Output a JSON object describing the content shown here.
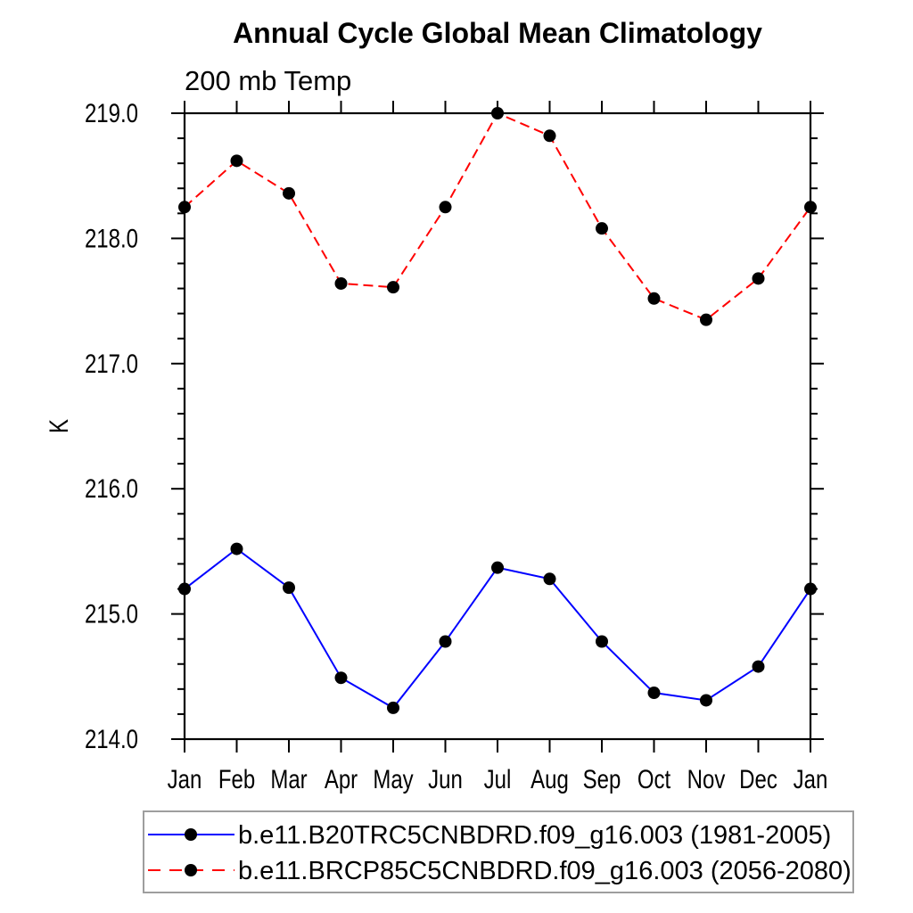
{
  "chart_data": {
    "type": "line",
    "title": "Annual Cycle Global Mean Climatology",
    "subtitle": "200 mb Temp",
    "ylabel": "K",
    "xlabel": "",
    "categories": [
      "Jan",
      "Feb",
      "Mar",
      "Apr",
      "May",
      "Jun",
      "Jul",
      "Aug",
      "Sep",
      "Oct",
      "Nov",
      "Dec",
      "Jan"
    ],
    "ylim": [
      214.0,
      219.0
    ],
    "ytick_interval": 1.0,
    "yminor_interval": 0.2,
    "ytick_labels": [
      "214.0",
      "215.0",
      "216.0",
      "217.0",
      "218.0",
      "219.0"
    ],
    "grid": false,
    "legend_position": "bottom",
    "series": [
      {
        "name": "b.e11.B20TRC5CNBDRD.f09_g16.003 (1981-2005)",
        "color": "#0000ff",
        "line_style": "solid",
        "marker": "filled-circle",
        "marker_color": "#000000",
        "values": [
          215.2,
          215.52,
          215.21,
          214.49,
          214.25,
          214.78,
          215.37,
          215.28,
          214.78,
          214.37,
          214.31,
          214.58,
          215.2
        ]
      },
      {
        "name": "b.e11.BRCP85C5CNBDRD.f09_g16.003 (2056-2080)",
        "color": "#ff0000",
        "line_style": "dashed",
        "marker": "filled-circle",
        "marker_color": "#000000",
        "values": [
          218.25,
          218.62,
          218.36,
          217.64,
          217.61,
          218.25,
          219.0,
          218.82,
          218.08,
          217.52,
          217.35,
          217.68,
          218.25
        ]
      }
    ]
  },
  "colors": {
    "background": "#ffffff",
    "axis": "#000000",
    "legend_border": "#9e9e9e"
  }
}
